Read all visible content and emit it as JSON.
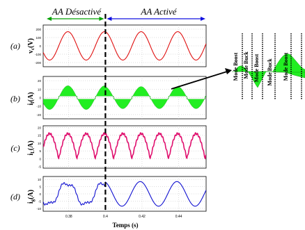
{
  "header": {
    "left_label": "AA Désactivé",
    "right_label": "AA Activé"
  },
  "xaxis": {
    "label": "Temps (s)",
    "ticks": [
      "0.38",
      "0.4",
      "0.42",
      "0.44"
    ],
    "tick_values": [
      0.38,
      0.4,
      0.42,
      0.44
    ],
    "range": [
      0.366,
      0.455
    ],
    "switch_time": 0.4
  },
  "colors": {
    "header_arrow": "#00a000",
    "header_arrow_right": "#1010e0",
    "green_fill": "#22ee22",
    "red": "#e01010",
    "pink": "#e0106e",
    "blue": "#1010d0"
  },
  "chart_data": [
    {
      "id": "a",
      "type": "line",
      "panel_label": "(a)",
      "ylabel_main": "v",
      "ylabel_sub": "c",
      "ylabel_unit": "(V)",
      "ylim": [
        -250,
        250
      ],
      "yticks": [
        "200",
        "100",
        "0",
        "-100",
        "-200"
      ],
      "ytick_values": [
        200,
        100,
        0,
        -100,
        -200
      ],
      "series": [
        {
          "shape": "sine",
          "amplitude": 170,
          "frequency_hz": 50,
          "phase_deg": 0,
          "color": "#e01010"
        }
      ]
    },
    {
      "id": "b",
      "type": "area",
      "panel_label": "(b)",
      "ylabel_main": "i",
      "ylabel_sub": "f",
      "ylabel_unit": "(A)",
      "ylim": [
        -25,
        25
      ],
      "yticks": [
        "20",
        "10",
        "0",
        "-10",
        "-20"
      ],
      "ytick_values": [
        20,
        10,
        0,
        -10,
        -20
      ],
      "series": [
        {
          "shape": "band",
          "envelope_before": 14,
          "envelope_after": 13,
          "ripple": 3,
          "frequency_hz": 50,
          "color": "#22ee22"
        }
      ]
    },
    {
      "id": "c",
      "type": "line",
      "panel_label": "(c)",
      "ylabel_main": "i",
      "ylabel_sub": "L",
      "ylabel_unit": "(A)",
      "ylim": [
        -6,
        21
      ],
      "yticks": [
        "20",
        "15",
        "10",
        "5",
        "0",
        "-5"
      ],
      "ytick_values": [
        20,
        15,
        10,
        5,
        0,
        -5
      ],
      "series": [
        {
          "shape": "rectified",
          "amplitude": 16,
          "offset": 0,
          "frequency_hz": 50,
          "color": "#e0106e"
        }
      ]
    },
    {
      "id": "d",
      "type": "line",
      "panel_label": "(d)",
      "ylabel_main": "i",
      "ylabel_sub": "g",
      "ylabel_unit": "(A)",
      "ylim": [
        -12,
        12
      ],
      "yticks": [
        "10",
        "5",
        "0",
        "-5",
        "-10"
      ],
      "ytick_values": [
        10,
        5,
        0,
        -5,
        -10
      ],
      "series": [
        {
          "shape": "distorted_sine",
          "amplitude_before": 9,
          "amplitude_after": 8.5,
          "frequency_hz": 50,
          "color": "#1010d0"
        }
      ]
    }
  ],
  "zoom": {
    "mode_labels": [
      "Mode Boost",
      "Mode Buck",
      "Mode Boost",
      "Mode Buck",
      "Mode Boost"
    ]
  }
}
